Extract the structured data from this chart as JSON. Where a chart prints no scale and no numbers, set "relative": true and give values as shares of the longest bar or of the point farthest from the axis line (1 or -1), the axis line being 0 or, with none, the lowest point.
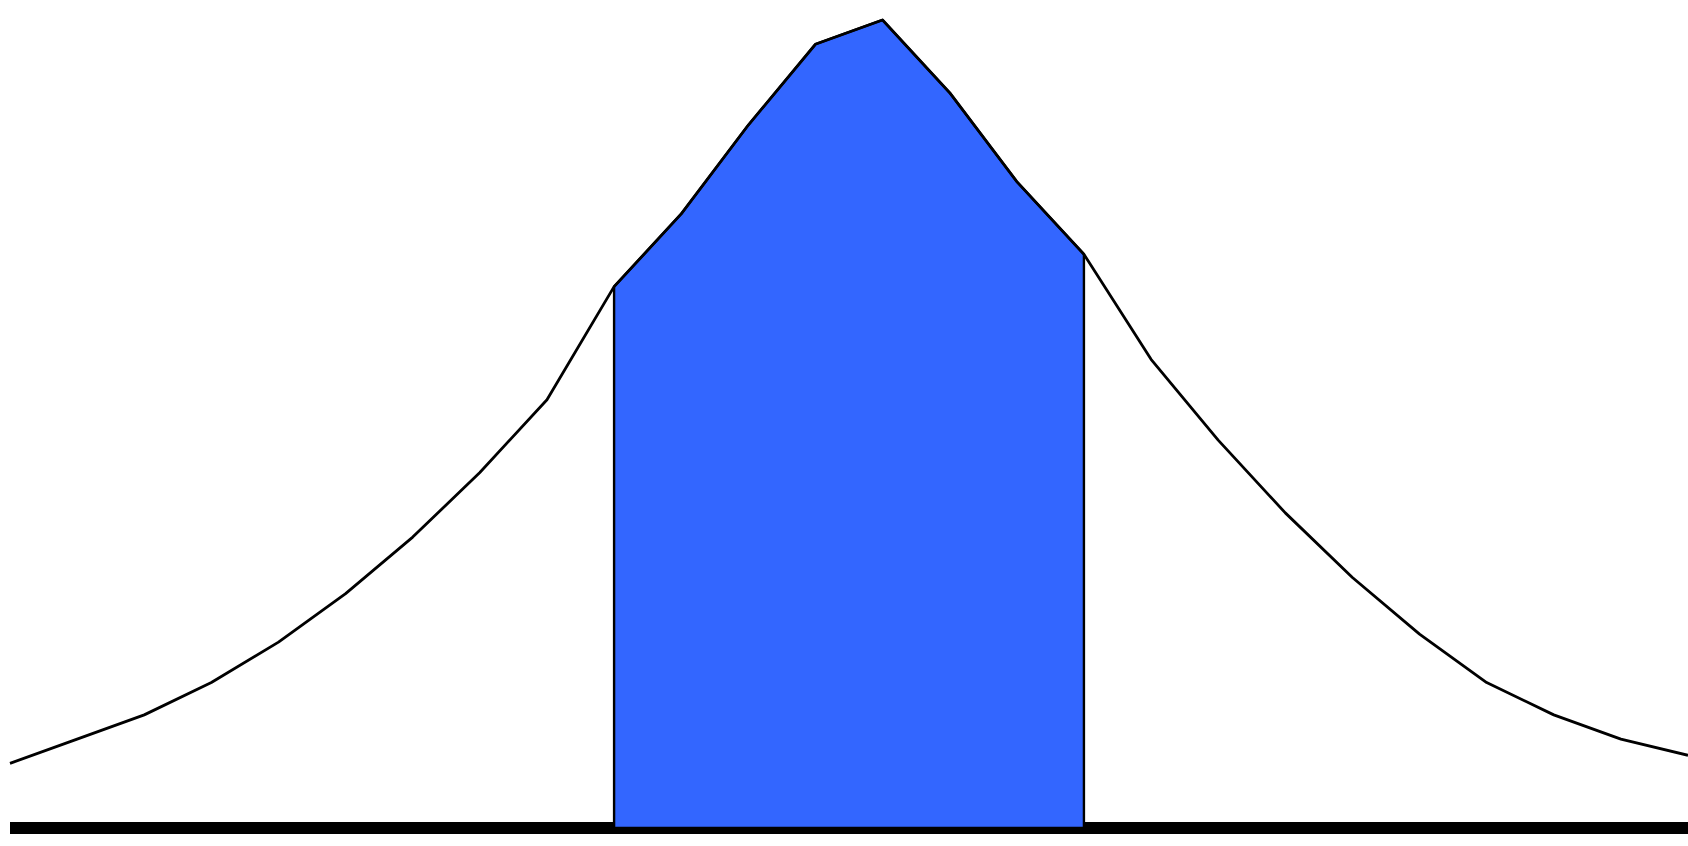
{
  "chart_data": {
    "type": "line",
    "relative": true,
    "categories": [
      null,
      null,
      null,
      null,
      null,
      null,
      null,
      null,
      null,
      null,
      null,
      null,
      null,
      null,
      null,
      null,
      null,
      null,
      null,
      null,
      null,
      null,
      null,
      null,
      null,
      null
    ],
    "series": [
      {
        "type": "area",
        "color": "#3366ff",
        "values": [
          null,
          null,
          null,
          null,
          null,
          null,
          null,
          null,
          null,
          0.67,
          0.76,
          0.87,
          0.97,
          1,
          0.91,
          0.8,
          0.71,
          null,
          null,
          null,
          null,
          null,
          null,
          null,
          null,
          null
        ]
      },
      {
        "type": "line",
        "color": "#000000",
        "values": [
          0.08,
          0.11,
          0.14,
          0.18,
          0.23,
          0.29,
          0.36,
          0.44,
          0.53,
          0.67,
          0.76,
          0.87,
          0.97,
          1,
          0.91,
          0.8,
          0.71,
          0.58,
          0.48,
          0.39,
          0.31,
          0.24,
          0.18,
          0.14,
          0.11,
          0.09
        ]
      }
    ]
  }
}
